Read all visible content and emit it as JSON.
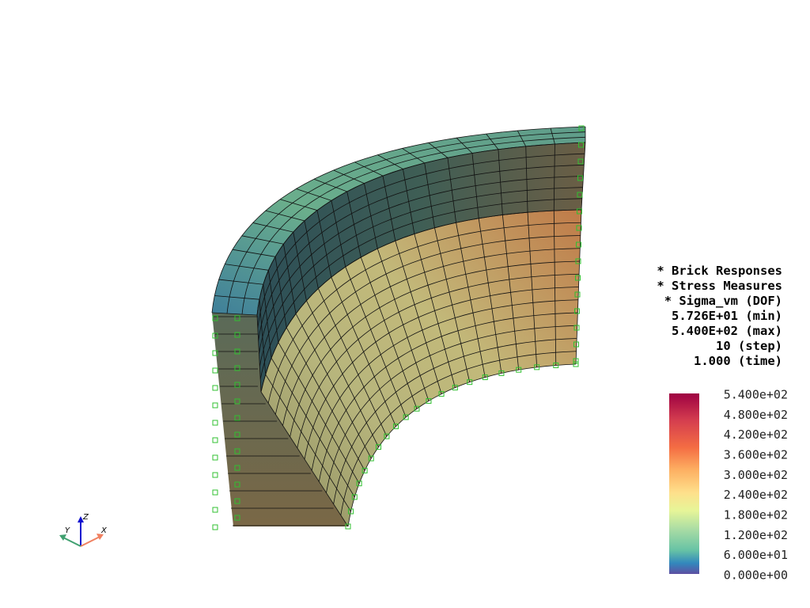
{
  "info": [
    "* Brick Responses",
    "* Stress Measures",
    " * Sigma_vm (DOF)",
    "5.726E+01 (min)",
    "5.400E+02 (max)",
    "10 (step)",
    "1.000 (time)"
  ],
  "colorbar": {
    "labels": [
      "5.400e+02",
      "4.800e+02",
      "4.200e+02",
      "3.600e+02",
      "3.000e+02",
      "2.400e+02",
      "1.800e+02",
      "1.200e+02",
      "6.000e+01",
      "0.000e+00"
    ]
  },
  "triad": {
    "x": "X",
    "y": "Y",
    "z": "Z"
  }
}
